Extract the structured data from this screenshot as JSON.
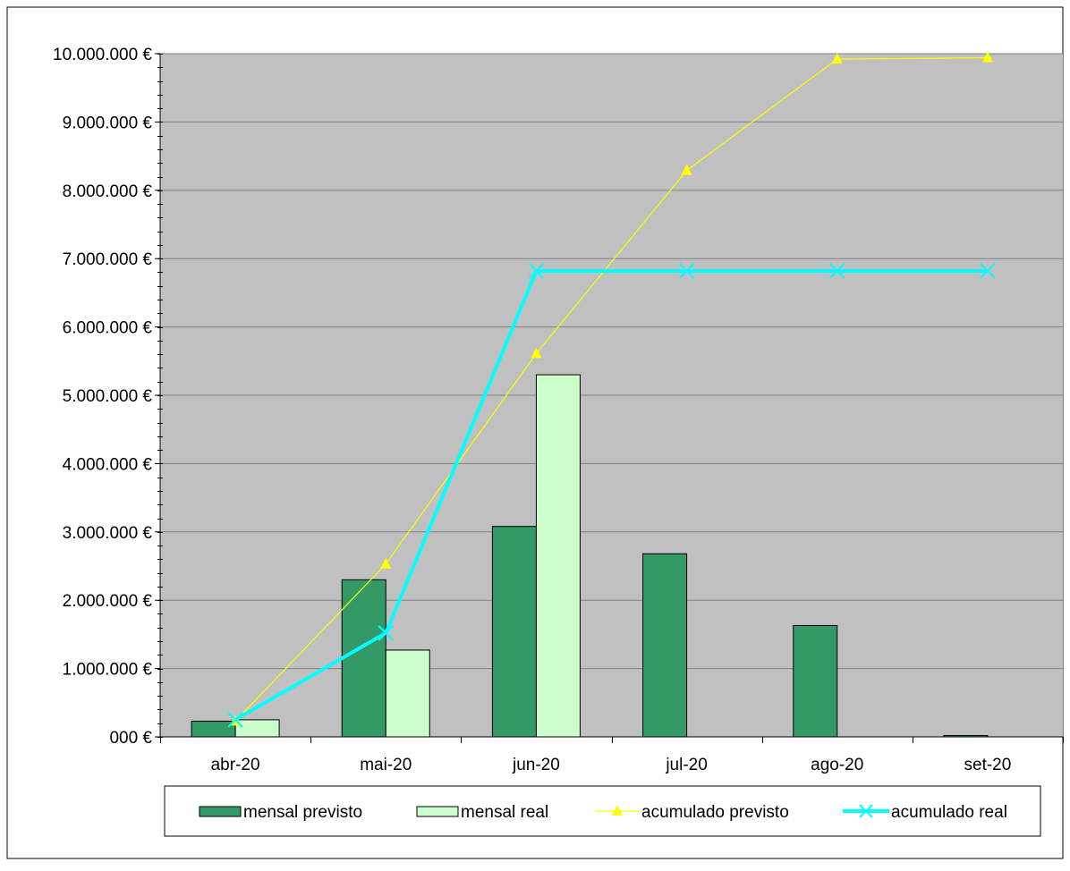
{
  "chart_data": {
    "type": "bar",
    "categories": [
      "abr-20",
      "mai-20",
      "jun-20",
      "jul-20",
      "ago-20",
      "set-20"
    ],
    "ylim": [
      0,
      10000000
    ],
    "ytick_values": [
      0,
      1000000,
      2000000,
      3000000,
      4000000,
      5000000,
      6000000,
      7000000,
      8000000,
      9000000,
      10000000
    ],
    "ytick_labels": [
      "000 €",
      "1.000.000 €",
      "2.000.000 €",
      "3.000.000 €",
      "4.000.000 €",
      "5.000.000 €",
      "6.000.000 €",
      "7.000.000 €",
      "8.000.000 €",
      "9.000.000 €",
      "10.000.000 €"
    ],
    "minor_ticks_per_major": 5,
    "grid": true,
    "legend_position": "bottom",
    "plot_background": "#c0c0c0",
    "series": [
      {
        "name": "mensal previsto",
        "kind": "bar",
        "color": "#339966",
        "values": [
          230000,
          2300000,
          3080000,
          2680000,
          1630000,
          20000
        ]
      },
      {
        "name": "mensal real",
        "kind": "bar",
        "color": "#ccffcc",
        "values": [
          250000,
          1270000,
          5300000,
          0,
          0,
          0
        ]
      },
      {
        "name": "acumulado previsto",
        "kind": "line",
        "marker": "triangle",
        "color": "#ffff00",
        "values": [
          230000,
          2530000,
          5610000,
          8290000,
          9920000,
          9940000
        ]
      },
      {
        "name": "acumulado real",
        "kind": "line",
        "marker": "x",
        "color": "#00ffff",
        "values": [
          250000,
          1520000,
          6820000,
          6820000,
          6820000,
          6820000
        ]
      }
    ]
  }
}
